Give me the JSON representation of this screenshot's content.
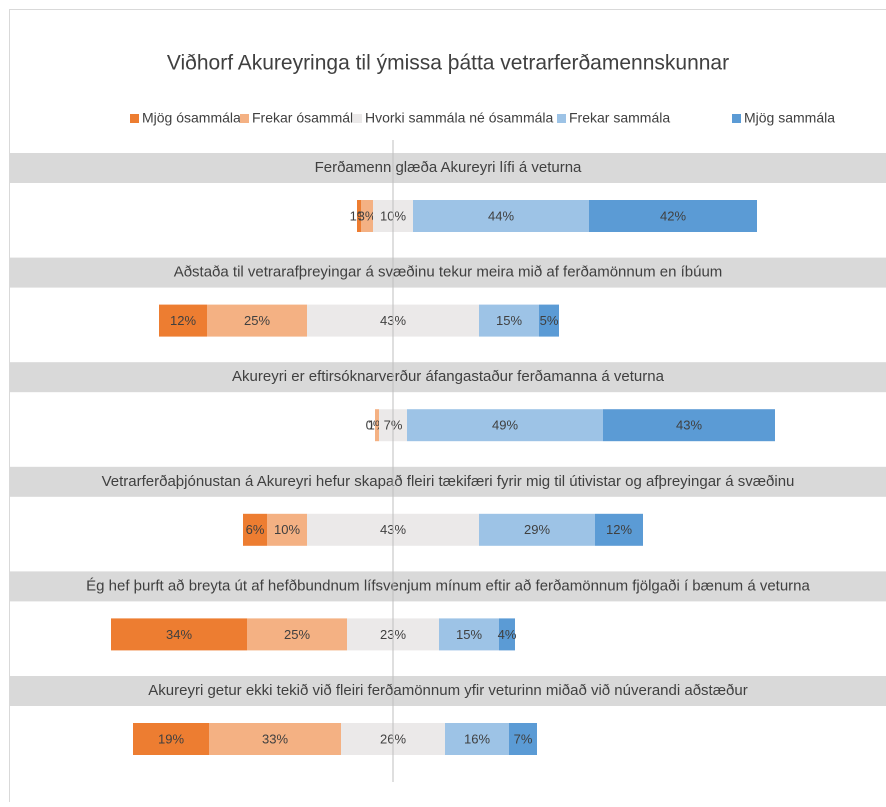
{
  "chart_data": {
    "type": "diverging_bar",
    "title": "Viðhorf Akureyringa til ýmissa þátta vetrarferðamennskunnar",
    "categories": [
      "Ferðamenn glæða Akureyri lífi á veturna",
      "Aðstaða til vetrarafþreyingar á svæðinu tekur meira mið af ferðamönnum en íbúum",
      "Akureyri er eftirsóknarverður áfangastaður ferðamanna á veturna",
      "Vetrarferðaþjónustan á Akureyri hefur skapað fleiri tækifæri fyrir mig til útivistar og afþreyingar á svæðinu",
      "Ég hef þurft að breyta út af hefðbundnum lífsvenjum mínum eftir að ferðamönnum fjölgaði í bænum á veturna",
      "Akureyri getur ekki tekið við fleiri ferðamönnum yfir veturinn miðað við núverandi aðstæður"
    ],
    "series": [
      {
        "name": "Mjög ósammála",
        "color": "#ed7d31",
        "values": [
          1,
          12,
          0,
          6,
          34,
          19
        ],
        "value_labels": [
          "1%",
          "12%",
          "0%",
          "6%",
          "34%",
          "19%"
        ]
      },
      {
        "name": "Frekar ósammála",
        "color": "#f4b183",
        "values": [
          3,
          25,
          1,
          10,
          25,
          33
        ],
        "value_labels": [
          "3%",
          "25%",
          "1%",
          "10%",
          "25%",
          "33%"
        ]
      },
      {
        "name": "Hvorki sammála né ósammála",
        "color": "#ebe9e9",
        "values": [
          10,
          43,
          7,
          43,
          23,
          26
        ],
        "value_labels": [
          "10%",
          "43%",
          "7%",
          "43%",
          "23%",
          "26%"
        ]
      },
      {
        "name": "Frekar sammála",
        "color": "#9dc3e6",
        "values": [
          44,
          15,
          49,
          29,
          15,
          16
        ],
        "value_labels": [
          "44%",
          "15%",
          "49%",
          "29%",
          "15%",
          "16%"
        ]
      },
      {
        "name": "Mjög sammála",
        "color": "#5b9bd5",
        "values": [
          42,
          5,
          43,
          12,
          4,
          7
        ],
        "value_labels": [
          "42%",
          "5%",
          "43%",
          "12%",
          "4%",
          "7%"
        ]
      }
    ]
  }
}
